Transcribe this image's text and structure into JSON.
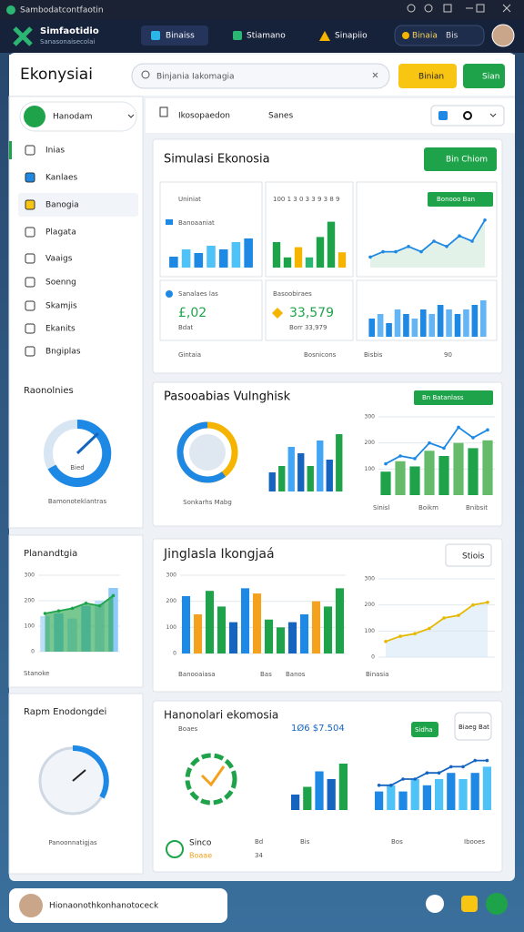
{
  "window": {
    "title": "Sambodatcontfaotin"
  },
  "header": {
    "app_name": "Simfaotidio",
    "app_subtitle": "Sanasonaisecolai",
    "tabs": [
      "Binaiss",
      "Stiamano",
      "Sinapiio"
    ],
    "account": {
      "label": "Binaia",
      "value": "Bis"
    }
  },
  "page": {
    "title": "Ekonysiai",
    "search_placeholder": "Binjania Iakomagia",
    "buttons": [
      "Binian",
      "Sian"
    ]
  },
  "sidebar": {
    "profile": "Hanodam",
    "menu": [
      "Inias",
      "Kanlaes",
      "Banogia",
      "Plagata",
      "Vaaigs",
      "Soenng",
      "Skamjis",
      "Ekanits",
      "Bngiplas"
    ],
    "active_index": 2,
    "gauge_card": {
      "title": "Raonolnies",
      "center_label": "Bied",
      "caption": "Bamonoteklantras"
    },
    "chart_card": {
      "title": "Planandtgia",
      "footer": "Stanoke"
    },
    "report_card": {
      "title": "Rapm Enodongdei",
      "caption": "Panoonnatigjas"
    }
  },
  "toolbar": {
    "dropdown": "Ikosopaedon",
    "label": "Sanes"
  },
  "card1": {
    "title": "Simulasi Ekonosia",
    "button": "Bin Chiom",
    "panel_a_label": "Uniniat",
    "panel_a_legend": "Banoaaniat",
    "panel_b_label": "100 1 3 0 3 3 9 3 8 9",
    "panel_c_tag": "Bonooo Ban",
    "stat1_label": "Sanalaes las",
    "stat1_value": "£,02",
    "stat1_sub": "Bdat",
    "stat2_label": "Basoobiraes",
    "stat2_value": "33,579",
    "stat2_sub": "Borr 33,979",
    "footer": [
      "Gintaia",
      "Bosnicons",
      "Bisbis",
      "90"
    ]
  },
  "card2": {
    "title": "Pasooabias Vulnghisk",
    "tag": "Bn Batanlass",
    "donut_caption": "Sonkarhs Mabg",
    "footer": [
      "Sinisl",
      "Boikm",
      "Bnibsit"
    ]
  },
  "card3": {
    "title": "Jinglasla Ikongjaá",
    "button": "Stiois",
    "footer": [
      "Banooaiasa",
      "Bas",
      "Banos",
      "Binasia"
    ]
  },
  "card4": {
    "title": "Hanonolari ekomosia",
    "sub": "Boaes",
    "value": "1Ø6 $7.504",
    "button_green": "Sidha",
    "button_white": "Biaeg Bat",
    "stat_label": "Sinco",
    "stat_value": "Boaae",
    "labels": [
      "Bd",
      "Bis",
      "Bos",
      "Ibooes"
    ],
    "sub_value": "34"
  },
  "footer": {
    "user": "Hionaonothkonhanotoceck"
  },
  "charts": [
    {
      "type": "bar",
      "values": [
        3,
        5,
        4,
        6,
        5,
        7,
        8
      ],
      "ylim": [
        0,
        10
      ],
      "colors": [
        "#1e88e5",
        "#4fc3f7"
      ]
    },
    {
      "type": "bar",
      "values": [
        5,
        2,
        4,
        2,
        6,
        9,
        3
      ],
      "ylim": [
        0,
        10
      ],
      "colors": [
        "#1fa34a",
        "#1fa34a",
        "#f4b400",
        "#2bb673"
      ]
    },
    {
      "type": "line",
      "values": [
        2,
        3,
        3,
        4,
        3,
        5,
        4,
        6,
        5,
        9
      ],
      "ylim": [
        0,
        10
      ],
      "color": "#1e88e5",
      "area_color": "#cfe9d8"
    },
    {
      "type": "bar",
      "values": [
        4,
        5,
        3,
        6,
        5,
        4,
        6,
        5,
        7,
        6,
        5,
        6,
        7,
        8
      ],
      "ylim": [
        0,
        10
      ],
      "colors": [
        "#1e88e5",
        "#64b5f6"
      ]
    },
    {
      "type": "bar",
      "values": [
        3,
        4,
        7,
        6,
        4,
        8,
        5,
        9
      ],
      "ylim": [
        0,
        10
      ],
      "colors": [
        "#1565c0",
        "#1fa34a",
        "#42a5f5"
      ]
    },
    {
      "type": "combo",
      "bar_values": [
        90,
        130,
        110,
        170,
        150,
        200,
        180,
        210
      ],
      "values": [
        120,
        150,
        140,
        200,
        180,
        260,
        220,
        250
      ],
      "ylim": [
        0,
        300
      ],
      "yticks": [
        100,
        200,
        300
      ],
      "colors": [
        "#1fa34a",
        "#66bb6a"
      ],
      "color": "#1e88e5"
    },
    {
      "type": "combo",
      "bar_values": [
        140,
        150,
        130,
        180,
        200,
        250
      ],
      "values": [
        150,
        160,
        170,
        190,
        180,
        220
      ],
      "ylim": [
        0,
        300
      ],
      "yticks": [
        0,
        100,
        200,
        300
      ],
      "colors": [
        "#bbdefb",
        "#90caf9"
      ],
      "color": "#1fa34a",
      "area_color": "#1fa34a"
    },
    {
      "type": "bar",
      "values": [
        220,
        150,
        240,
        180,
        120,
        250,
        230,
        130,
        100,
        120,
        150,
        200,
        180,
        250
      ],
      "ylim": [
        0,
        300
      ],
      "yticks": [
        0,
        100,
        200,
        300
      ],
      "colors": [
        "#1e88e5",
        "#f4a21e",
        "#1fa34a",
        "#1fa34a",
        "#1565c0"
      ]
    },
    {
      "type": "line",
      "values": [
        60,
        80,
        90,
        110,
        150,
        160,
        200,
        210
      ],
      "ylim": [
        0,
        300
      ],
      "yticks": [
        0,
        100,
        200,
        300
      ],
      "color": "#e6b800",
      "area_color": "#d6e8f5"
    },
    {
      "type": "bar",
      "values": [
        2,
        3,
        5,
        4,
        6
      ],
      "ylim": [
        0,
        8
      ],
      "colors": [
        "#1565c0",
        "#1fa34a",
        "#1e88e5"
      ]
    },
    {
      "type": "combo",
      "bar_values": [
        3,
        4,
        3,
        5,
        4,
        5,
        6,
        5,
        6,
        7
      ],
      "values": [
        4,
        4,
        5,
        5,
        6,
        6,
        7,
        7,
        8,
        8
      ],
      "ylim": [
        0,
        10
      ],
      "colors": [
        "#1e88e5",
        "#4fc3f7"
      ],
      "color": "#1565c0"
    }
  ]
}
